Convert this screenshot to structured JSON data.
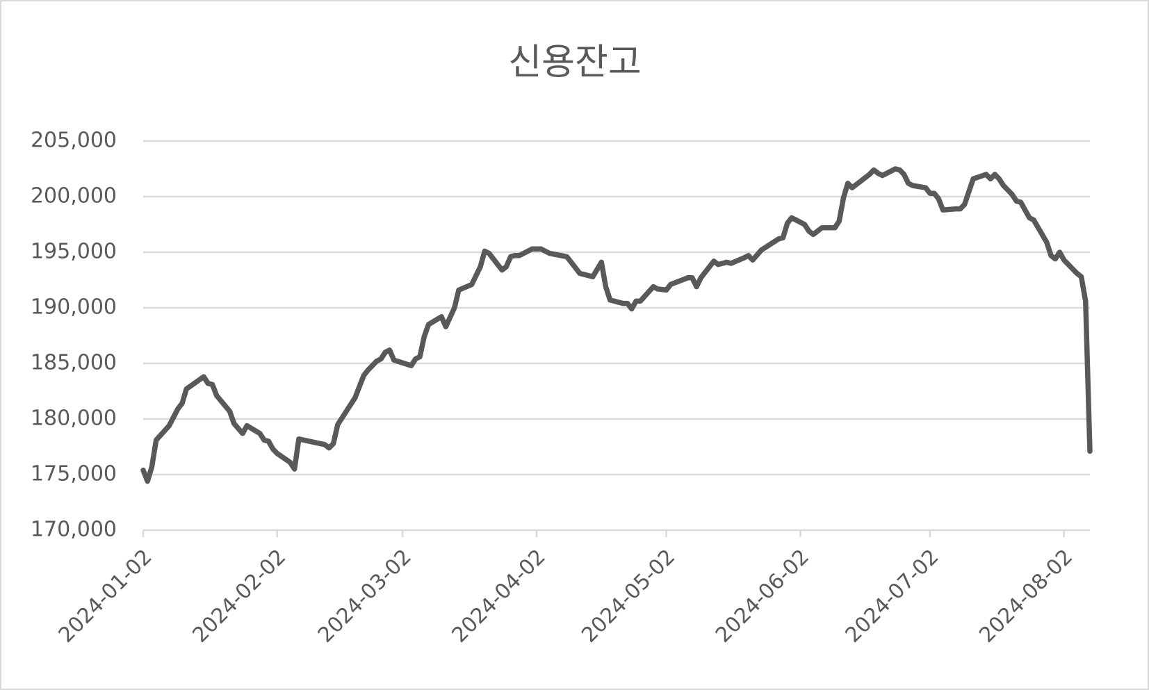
{
  "chart_data": {
    "type": "line",
    "title": "신용잔고",
    "x": [
      "2024-01-02",
      "2024-01-03",
      "2024-01-04",
      "2024-01-05",
      "2024-01-08",
      "2024-01-10",
      "2024-01-11",
      "2024-01-12",
      "2024-01-16",
      "2024-01-17",
      "2024-01-18",
      "2024-01-19",
      "2024-01-22",
      "2024-01-23",
      "2024-01-25",
      "2024-01-26",
      "2024-01-29",
      "2024-01-30",
      "2024-01-31",
      "2024-02-01",
      "2024-02-02",
      "2024-02-05",
      "2024-02-06",
      "2024-02-07",
      "2024-02-13",
      "2024-02-14",
      "2024-02-15",
      "2024-02-16",
      "2024-02-20",
      "2024-02-22",
      "2024-02-23",
      "2024-02-25",
      "2024-02-26",
      "2024-02-27",
      "2024-02-28",
      "2024-02-29",
      "2024-03-04",
      "2024-03-05",
      "2024-03-06",
      "2024-03-07",
      "2024-03-08",
      "2024-03-11",
      "2024-03-12",
      "2024-03-14",
      "2024-03-15",
      "2024-03-18",
      "2024-03-20",
      "2024-03-21",
      "2024-03-22",
      "2024-03-25",
      "2024-03-26",
      "2024-03-27",
      "2024-03-28",
      "2024-03-29",
      "2024-04-01",
      "2024-04-03",
      "2024-04-04",
      "2024-04-05",
      "2024-04-09",
      "2024-04-12",
      "2024-04-15",
      "2024-04-17",
      "2024-04-18",
      "2024-04-19",
      "2024-04-22",
      "2024-04-23",
      "2024-04-24",
      "2024-04-25",
      "2024-04-26",
      "2024-04-29",
      "2024-04-30",
      "2024-05-02",
      "2024-05-03",
      "2024-05-07",
      "2024-05-08",
      "2024-05-09",
      "2024-05-10",
      "2024-05-13",
      "2024-05-14",
      "2024-05-15",
      "2024-05-16",
      "2024-05-17",
      "2024-05-20",
      "2024-05-21",
      "2024-05-22",
      "2024-05-24",
      "2024-05-28",
      "2024-05-29",
      "2024-05-30",
      "2024-05-31",
      "2024-06-03",
      "2024-06-04",
      "2024-06-05",
      "2024-06-07",
      "2024-06-10",
      "2024-06-11",
      "2024-06-12",
      "2024-06-13",
      "2024-06-14",
      "2024-06-18",
      "2024-06-19",
      "2024-06-20",
      "2024-06-21",
      "2024-06-24",
      "2024-06-25",
      "2024-06-26",
      "2024-06-27",
      "2024-06-28",
      "2024-07-01",
      "2024-07-02",
      "2024-07-03",
      "2024-07-04",
      "2024-07-05",
      "2024-07-08",
      "2024-07-09",
      "2024-07-10",
      "2024-07-12",
      "2024-07-15",
      "2024-07-16",
      "2024-07-17",
      "2024-07-18",
      "2024-07-19",
      "2024-07-21",
      "2024-07-22",
      "2024-07-23",
      "2024-07-24",
      "2024-07-25",
      "2024-07-26",
      "2024-07-29",
      "2024-07-30",
      "2024-07-31",
      "2024-08-01",
      "2024-08-02",
      "2024-08-05",
      "2024-08-06",
      "2024-08-07",
      "2024-08-08"
    ],
    "series": [
      {
        "color": "#595959",
        "values": [
          175400,
          174400,
          175700,
          178100,
          179400,
          180900,
          181400,
          182700,
          183800,
          183200,
          183100,
          182100,
          180700,
          179600,
          178700,
          179400,
          178700,
          178100,
          178000,
          177300,
          176900,
          176100,
          175500,
          178200,
          177700,
          177400,
          177800,
          179500,
          181900,
          183900,
          184400,
          185200,
          185400,
          186000,
          186200,
          185300,
          184800,
          185400,
          185600,
          187400,
          188500,
          189200,
          188300,
          190000,
          191600,
          192100,
          193700,
          195100,
          194900,
          193400,
          193700,
          194600,
          194700,
          194700,
          195300,
          195300,
          195100,
          194900,
          194600,
          193100,
          192800,
          194100,
          191900,
          190700,
          190400,
          190400,
          189900,
          190600,
          190600,
          191900,
          191700,
          191600,
          192100,
          192700,
          192700,
          191900,
          192700,
          194200,
          193900,
          194000,
          194100,
          194000,
          194500,
          194700,
          194300,
          195200,
          196200,
          196300,
          197600,
          198100,
          197500,
          196900,
          196600,
          197200,
          197200,
          197800,
          199900,
          201200,
          200800,
          202000,
          202400,
          202100,
          201900,
          202500,
          202400,
          202000,
          201200,
          201000,
          200800,
          200300,
          200300,
          199800,
          198800,
          198900,
          198900,
          199300,
          201600,
          202000,
          201600,
          202000,
          201600,
          201000,
          200200,
          199600,
          199500,
          198800,
          198100,
          197900,
          195900,
          194700,
          194400,
          195000,
          194300,
          193100,
          192800,
          190600,
          177100
        ]
      }
    ],
    "xlim": [
      "2024-01-02",
      "2024-08-08"
    ],
    "xticks": [
      "2024-01-02",
      "2024-02-02",
      "2024-03-02",
      "2024-04-02",
      "2024-05-02",
      "2024-06-02",
      "2024-07-02",
      "2024-08-02"
    ],
    "ylim": [
      170000,
      205000
    ],
    "yticks": [
      {
        "value": 170000,
        "label": "170,000"
      },
      {
        "value": 175000,
        "label": "175,000"
      },
      {
        "value": 180000,
        "label": "180,000"
      },
      {
        "value": 185000,
        "label": "185,000"
      },
      {
        "value": 190000,
        "label": "190,000"
      },
      {
        "value": 195000,
        "label": "195,000"
      },
      {
        "value": 200000,
        "label": "200,000"
      },
      {
        "value": 205000,
        "label": "205,000"
      }
    ],
    "grid": true
  }
}
